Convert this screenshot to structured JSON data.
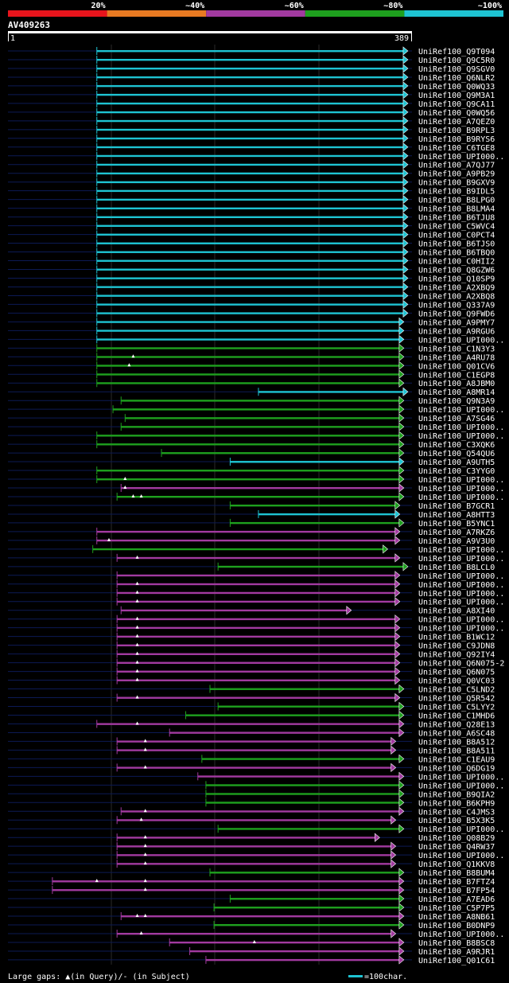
{
  "query_id": "AV409263",
  "scale": {
    "start": "1",
    "end": "389"
  },
  "identity_legend": [
    {
      "label": "20%",
      "color": "#e8141c"
    },
    {
      "label": "~40%",
      "color": "#e87a22"
    },
    {
      "label": "~60%",
      "color": "#a23aa0"
    },
    {
      "label": "~80%",
      "color": "#1ea01e"
    },
    {
      "label": "~100%",
      "color": "#1ec3d2"
    }
  ],
  "footer": {
    "gaps_legend": "Large gaps: ▲(in Query)/- (in Subject)",
    "scale_legend": "=100char."
  },
  "hits": [
    {
      "name": "UniRef100_Q9T094",
      "color": "#1ec3d2",
      "start": 0.22,
      "end": 0.99
    },
    {
      "name": "UniRef100_Q9C5R0",
      "color": "#1ec3d2",
      "start": 0.22,
      "end": 0.99
    },
    {
      "name": "UniRef100_Q9SGV0",
      "color": "#1ec3d2",
      "start": 0.22,
      "end": 0.99
    },
    {
      "name": "UniRef100_Q6NLR2",
      "color": "#1ec3d2",
      "start": 0.22,
      "end": 0.99
    },
    {
      "name": "UniRef100_Q0WQ33",
      "color": "#1ec3d2",
      "start": 0.22,
      "end": 0.99
    },
    {
      "name": "UniRef100_Q9M3A1",
      "color": "#1ec3d2",
      "start": 0.22,
      "end": 0.99
    },
    {
      "name": "UniRef100_Q9CA11",
      "color": "#1ec3d2",
      "start": 0.22,
      "end": 0.99
    },
    {
      "name": "UniRef100_Q0WQ56",
      "color": "#1ec3d2",
      "start": 0.22,
      "end": 0.99
    },
    {
      "name": "UniRef100_A7QEZ0",
      "color": "#1ec3d2",
      "start": 0.22,
      "end": 0.99
    },
    {
      "name": "UniRef100_B9RPL3",
      "color": "#1ec3d2",
      "start": 0.22,
      "end": 0.99
    },
    {
      "name": "UniRef100_B9RYS6",
      "color": "#1ec3d2",
      "start": 0.22,
      "end": 0.99
    },
    {
      "name": "UniRef100_C6TGE8",
      "color": "#1ec3d2",
      "start": 0.22,
      "end": 0.99
    },
    {
      "name": "UniRef100_UPI000..",
      "color": "#1ec3d2",
      "start": 0.22,
      "end": 0.99
    },
    {
      "name": "UniRef100_A7QJ77",
      "color": "#1ec3d2",
      "start": 0.22,
      "end": 0.99
    },
    {
      "name": "UniRef100_A9PB29",
      "color": "#1ec3d2",
      "start": 0.22,
      "end": 0.99
    },
    {
      "name": "UniRef100_B9GXV9",
      "color": "#1ec3d2",
      "start": 0.22,
      "end": 0.99
    },
    {
      "name": "UniRef100_B9IDL5",
      "color": "#1ec3d2",
      "start": 0.22,
      "end": 0.99
    },
    {
      "name": "UniRef100_B8LPG0",
      "color": "#1ec3d2",
      "start": 0.22,
      "end": 0.99
    },
    {
      "name": "UniRef100_B8LMA4",
      "color": "#1ec3d2",
      "start": 0.22,
      "end": 0.99
    },
    {
      "name": "UniRef100_B6TJU8",
      "color": "#1ec3d2",
      "start": 0.22,
      "end": 0.99
    },
    {
      "name": "UniRef100_C5WVC4",
      "color": "#1ec3d2",
      "start": 0.22,
      "end": 0.99
    },
    {
      "name": "UniRef100_C0PCT4",
      "color": "#1ec3d2",
      "start": 0.22,
      "end": 0.99
    },
    {
      "name": "UniRef100_B6TJS0",
      "color": "#1ec3d2",
      "start": 0.22,
      "end": 0.99
    },
    {
      "name": "UniRef100_B6TBQ0",
      "color": "#1ec3d2",
      "start": 0.22,
      "end": 0.99
    },
    {
      "name": "UniRef100_C0HII2",
      "color": "#1ec3d2",
      "start": 0.22,
      "end": 0.99
    },
    {
      "name": "UniRef100_Q8GZW6",
      "color": "#1ec3d2",
      "start": 0.22,
      "end": 0.99
    },
    {
      "name": "UniRef100_Q10SP9",
      "color": "#1ec3d2",
      "start": 0.22,
      "end": 0.99
    },
    {
      "name": "UniRef100_A2XBQ9",
      "color": "#1ec3d2",
      "start": 0.22,
      "end": 0.99
    },
    {
      "name": "UniRef100_A2XBQ8",
      "color": "#1ec3d2",
      "start": 0.22,
      "end": 0.99
    },
    {
      "name": "UniRef100_Q337A9",
      "color": "#1ec3d2",
      "start": 0.22,
      "end": 0.99
    },
    {
      "name": "UniRef100_Q9FWD6",
      "color": "#1ec3d2",
      "start": 0.22,
      "end": 0.99
    },
    {
      "name": "UniRef100_A9PMY7",
      "color": "#1ec3d2",
      "start": 0.22,
      "end": 0.98
    },
    {
      "name": "UniRef100_A9RGU6",
      "color": "#1ec3d2",
      "start": 0.22,
      "end": 0.98
    },
    {
      "name": "UniRef100_UPI000..",
      "color": "#1ec3d2",
      "start": 0.22,
      "end": 0.98
    },
    {
      "name": "UniRef100_C1N3Y3",
      "color": "#1ea01e",
      "start": 0.22,
      "end": 0.98
    },
    {
      "name": "UniRef100_A4RU78",
      "color": "#1ea01e",
      "start": 0.22,
      "end": 0.98,
      "gaps": [
        0.31
      ]
    },
    {
      "name": "UniRef100_Q01CV6",
      "color": "#1ea01e",
      "start": 0.22,
      "end": 0.98,
      "gaps": [
        0.3
      ]
    },
    {
      "name": "UniRef100_C1EGP8",
      "color": "#1ea01e",
      "start": 0.22,
      "end": 0.98
    },
    {
      "name": "UniRef100_A8JBM0",
      "color": "#1ea01e",
      "start": 0.22,
      "end": 0.98
    },
    {
      "name": "UniRef100_A8MR14",
      "color": "#1ec3d2",
      "start": 0.62,
      "end": 0.99
    },
    {
      "name": "UniRef100_Q9N3A9",
      "color": "#1ea01e",
      "start": 0.28,
      "end": 0.98
    },
    {
      "name": "UniRef100_UPI000..",
      "color": "#1ea01e",
      "start": 0.26,
      "end": 0.98
    },
    {
      "name": "UniRef100_A7SG46",
      "color": "#1ea01e",
      "start": 0.29,
      "end": 0.98
    },
    {
      "name": "UniRef100_UPI000..",
      "color": "#1ea01e",
      "start": 0.28,
      "end": 0.98
    },
    {
      "name": "UniRef100_UPI000..",
      "color": "#1ea01e",
      "start": 0.22,
      "end": 0.98
    },
    {
      "name": "UniRef100_C3XQK6",
      "color": "#1ea01e",
      "start": 0.22,
      "end": 0.98
    },
    {
      "name": "UniRef100_Q54QU6",
      "color": "#1ea01e",
      "start": 0.38,
      "end": 0.98
    },
    {
      "name": "UniRef100_A9UTH5",
      "color": "#1ec3d2",
      "start": 0.55,
      "end": 0.98
    },
    {
      "name": "UniRef100_C3YYG0",
      "color": "#1ea01e",
      "start": 0.22,
      "end": 0.98
    },
    {
      "name": "UniRef100_UPI000..",
      "color": "#1ea01e",
      "start": 0.22,
      "end": 0.98,
      "gaps": [
        0.29
      ]
    },
    {
      "name": "UniRef100_UPI000..",
      "color": "#a23aa0",
      "start": 0.28,
      "end": 0.98,
      "gaps": [
        0.29
      ]
    },
    {
      "name": "UniRef100_UPI000..",
      "color": "#1ea01e",
      "start": 0.27,
      "end": 0.98,
      "gaps": [
        0.31,
        0.33
      ]
    },
    {
      "name": "UniRef100_B7GCR1",
      "color": "#1ea01e",
      "start": 0.55,
      "end": 0.97
    },
    {
      "name": "UniRef100_A8HTT3",
      "color": "#1ec3d2",
      "start": 0.62,
      "end": 0.97
    },
    {
      "name": "UniRef100_B5YNC1",
      "color": "#1ea01e",
      "start": 0.55,
      "end": 0.98
    },
    {
      "name": "UniRef100_A7RKZ6",
      "color": "#a23aa0",
      "start": 0.22,
      "end": 0.97
    },
    {
      "name": "UniRef100_A9V3U0",
      "color": "#a23aa0",
      "start": 0.22,
      "end": 0.97,
      "gaps": [
        0.25
      ]
    },
    {
      "name": "UniRef100_UPI000..",
      "color": "#1ea01e",
      "start": 0.21,
      "end": 0.94
    },
    {
      "name": "UniRef100_UPI000..",
      "color": "#a23aa0",
      "start": 0.27,
      "end": 0.97,
      "gaps": [
        0.32
      ]
    },
    {
      "name": "UniRef100_B8LCL0",
      "color": "#1ea01e",
      "start": 0.52,
      "end": 0.99
    },
    {
      "name": "UniRef100_UPI000..",
      "color": "#a23aa0",
      "start": 0.27,
      "end": 0.97
    },
    {
      "name": "UniRef100_UPI000..",
      "color": "#a23aa0",
      "start": 0.27,
      "end": 0.97,
      "gaps": [
        0.32
      ]
    },
    {
      "name": "UniRef100_UPI000..",
      "color": "#a23aa0",
      "start": 0.27,
      "end": 0.97,
      "gaps": [
        0.32
      ]
    },
    {
      "name": "UniRef100_UPI000..",
      "color": "#a23aa0",
      "start": 0.27,
      "end": 0.97,
      "gaps": [
        0.32
      ]
    },
    {
      "name": "UniRef100_A8XI40",
      "color": "#a23aa0",
      "start": 0.28,
      "end": 0.85
    },
    {
      "name": "UniRef100_UPI000..",
      "color": "#a23aa0",
      "start": 0.27,
      "end": 0.97,
      "gaps": [
        0.32
      ]
    },
    {
      "name": "UniRef100_UPI000..",
      "color": "#a23aa0",
      "start": 0.27,
      "end": 0.97,
      "gaps": [
        0.32
      ]
    },
    {
      "name": "UniRef100_B1WC12",
      "color": "#a23aa0",
      "start": 0.27,
      "end": 0.97,
      "gaps": [
        0.32
      ]
    },
    {
      "name": "UniRef100_C9JDN8",
      "color": "#a23aa0",
      "start": 0.27,
      "end": 0.97,
      "gaps": [
        0.32
      ]
    },
    {
      "name": "UniRef100_Q92IY4",
      "color": "#a23aa0",
      "start": 0.27,
      "end": 0.97,
      "gaps": [
        0.32
      ]
    },
    {
      "name": "UniRef100_Q6N075-2",
      "color": "#a23aa0",
      "start": 0.27,
      "end": 0.97,
      "gaps": [
        0.32
      ]
    },
    {
      "name": "UniRef100_Q6N075",
      "color": "#a23aa0",
      "start": 0.27,
      "end": 0.97,
      "gaps": [
        0.32
      ]
    },
    {
      "name": "UniRef100_Q0VC03",
      "color": "#a23aa0",
      "start": 0.27,
      "end": 0.97,
      "gaps": [
        0.32
      ]
    },
    {
      "name": "UniRef100_C5LND2",
      "color": "#1ea01e",
      "start": 0.5,
      "end": 0.98
    },
    {
      "name": "UniRef100_Q5R542",
      "color": "#a23aa0",
      "start": 0.27,
      "end": 0.97,
      "gaps": [
        0.32
      ]
    },
    {
      "name": "UniRef100_C5LYY2",
      "color": "#1ea01e",
      "start": 0.52,
      "end": 0.98
    },
    {
      "name": "UniRef100_C1MHD6",
      "color": "#1ea01e",
      "start": 0.44,
      "end": 0.98
    },
    {
      "name": "UniRef100_Q28E13",
      "color": "#a23aa0",
      "start": 0.22,
      "end": 0.98,
      "gaps": [
        0.32
      ]
    },
    {
      "name": "UniRef100_A6SC48",
      "color": "#a23aa0",
      "start": 0.4,
      "end": 0.98
    },
    {
      "name": "UniRef100_B8A512",
      "color": "#a23aa0",
      "start": 0.27,
      "end": 0.96,
      "gaps": [
        0.34
      ]
    },
    {
      "name": "UniRef100_B8A511",
      "color": "#a23aa0",
      "start": 0.27,
      "end": 0.96,
      "gaps": [
        0.34
      ]
    },
    {
      "name": "UniRef100_C1EAU9",
      "color": "#1ea01e",
      "start": 0.48,
      "end": 0.98
    },
    {
      "name": "UniRef100_Q6DG19",
      "color": "#a23aa0",
      "start": 0.27,
      "end": 0.96,
      "gaps": [
        0.34
      ]
    },
    {
      "name": "UniRef100_UPI000..",
      "color": "#a23aa0",
      "start": 0.47,
      "end": 0.98
    },
    {
      "name": "UniRef100_UPI000..",
      "color": "#1ea01e",
      "start": 0.49,
      "end": 0.98
    },
    {
      "name": "UniRef100_B9QIA2",
      "color": "#1ea01e",
      "start": 0.49,
      "end": 0.98
    },
    {
      "name": "UniRef100_B6KPH9",
      "color": "#1ea01e",
      "start": 0.49,
      "end": 0.98
    },
    {
      "name": "UniRef100_C4JMS3",
      "color": "#a23aa0",
      "start": 0.28,
      "end": 0.98,
      "gaps": [
        0.34
      ]
    },
    {
      "name": "UniRef100_B5X3K5",
      "color": "#a23aa0",
      "start": 0.27,
      "end": 0.96,
      "gaps": [
        0.33
      ]
    },
    {
      "name": "UniRef100_UPI000..",
      "color": "#1ea01e",
      "start": 0.52,
      "end": 0.98
    },
    {
      "name": "UniRef100_Q08B29",
      "color": "#a23aa0",
      "start": 0.27,
      "end": 0.92,
      "gaps": [
        0.34
      ]
    },
    {
      "name": "UniRef100_Q4RW37",
      "color": "#a23aa0",
      "start": 0.27,
      "end": 0.96,
      "gaps": [
        0.34
      ]
    },
    {
      "name": "UniRef100_UPI000..",
      "color": "#a23aa0",
      "start": 0.27,
      "end": 0.96,
      "gaps": [
        0.34
      ]
    },
    {
      "name": "UniRef100_Q1KKV8",
      "color": "#a23aa0",
      "start": 0.27,
      "end": 0.96,
      "gaps": [
        0.34
      ]
    },
    {
      "name": "UniRef100_B8BUM4",
      "color": "#1ea01e",
      "start": 0.5,
      "end": 0.98
    },
    {
      "name": "UniRef100_B7FTZ4",
      "color": "#a23aa0",
      "start": 0.11,
      "end": 0.98,
      "gaps": [
        0.22,
        0.34
      ]
    },
    {
      "name": "UniRef100_B7FP54",
      "color": "#a23aa0",
      "start": 0.11,
      "end": 0.98,
      "gaps": [
        0.34
      ]
    },
    {
      "name": "UniRef100_A7EAD6",
      "color": "#1ea01e",
      "start": 0.55,
      "end": 0.98
    },
    {
      "name": "UniRef100_C5P7P5",
      "color": "#1ea01e",
      "start": 0.51,
      "end": 0.98
    },
    {
      "name": "UniRef100_A8NB61",
      "color": "#a23aa0",
      "start": 0.28,
      "end": 0.98,
      "gaps": [
        0.32,
        0.34
      ]
    },
    {
      "name": "UniRef100_B0DNP9",
      "color": "#1ea01e",
      "start": 0.51,
      "end": 0.98
    },
    {
      "name": "UniRef100_UPI000..",
      "color": "#a23aa0",
      "start": 0.27,
      "end": 0.96,
      "gaps": [
        0.33
      ]
    },
    {
      "name": "UniRef100_B8BSC8",
      "color": "#a23aa0",
      "start": 0.4,
      "end": 0.98,
      "gaps": [
        0.61
      ]
    },
    {
      "name": "UniRef100_A9RJR1",
      "color": "#a23aa0",
      "start": 0.45,
      "end": 0.98
    },
    {
      "name": "UniRef100_Q01C61",
      "color": "#a23aa0",
      "start": 0.49,
      "end": 0.98
    }
  ]
}
